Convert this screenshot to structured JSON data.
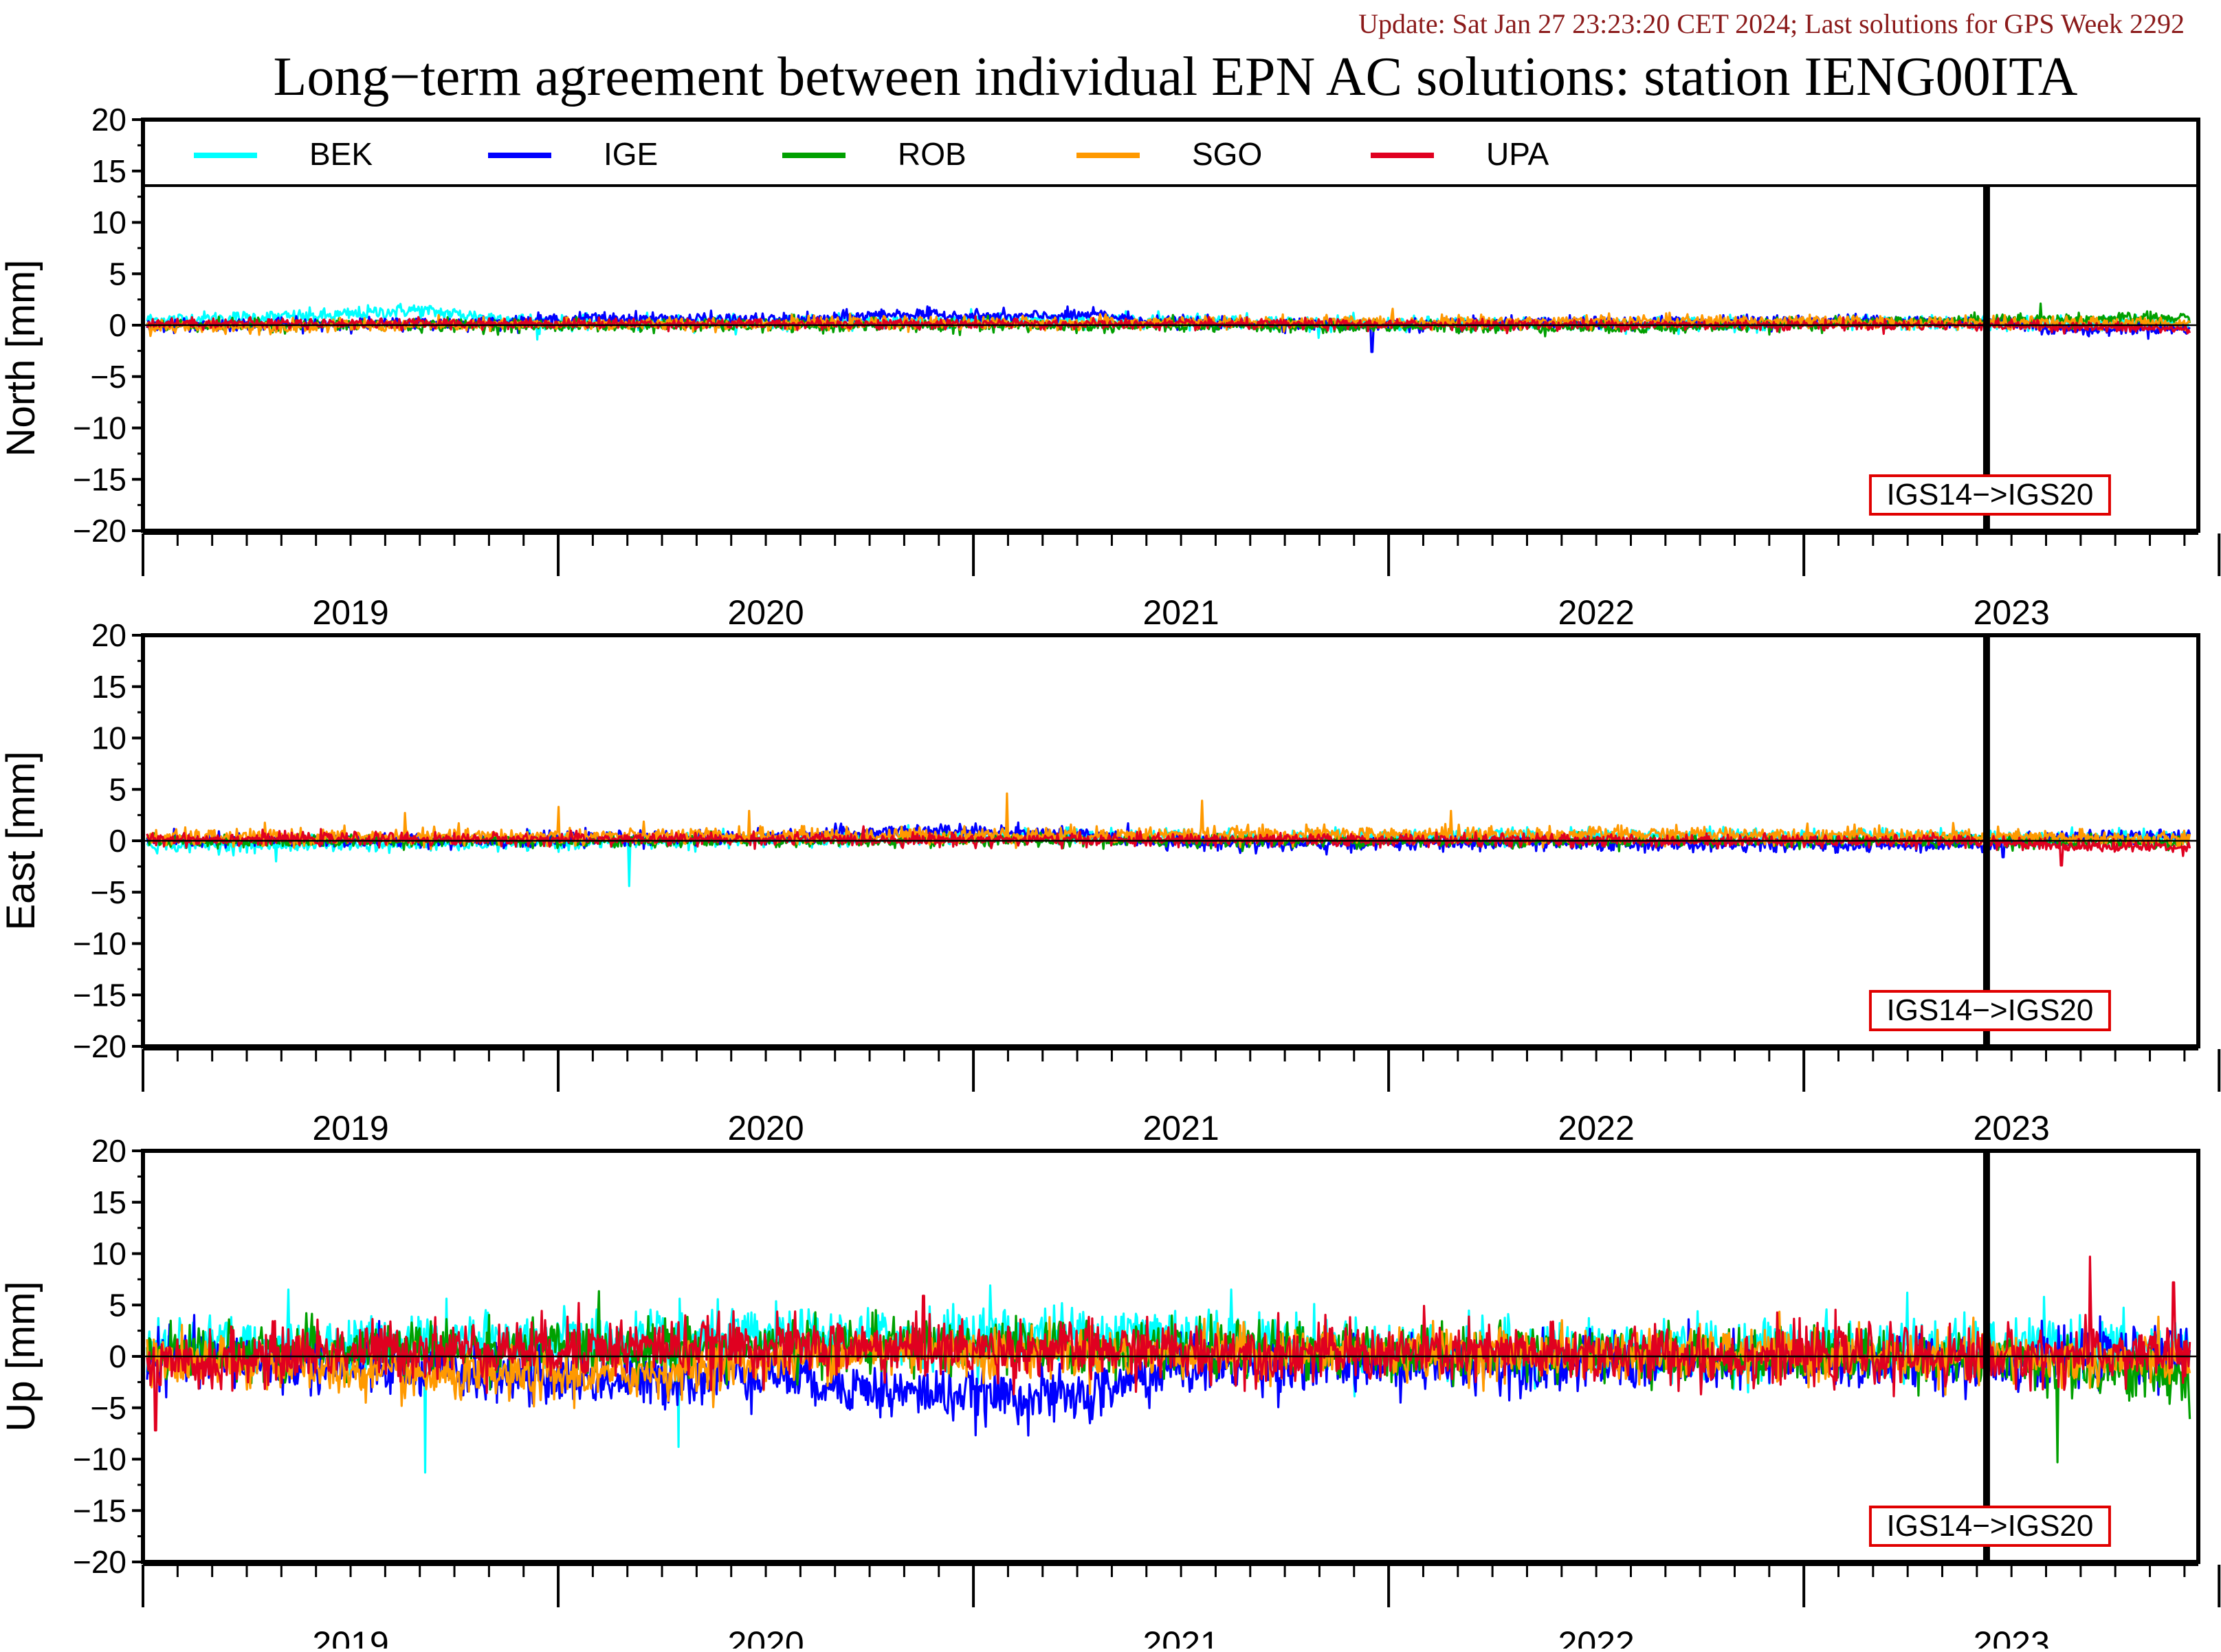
{
  "header": {
    "update_text": "Update: Sat Jan 27 23:23:20 CET 2024; Last solutions for GPS Week 2292",
    "title": "Long−term agreement between individual EPN AC solutions: station IENG00ITA"
  },
  "colors": {
    "update_text": "#8b1a1a",
    "BEK": "#00ffff",
    "IGE": "#0000ff",
    "ROB": "#00a000",
    "SGO": "#ff9900",
    "UPA": "#e00020",
    "annotation_border": "#e00000"
  },
  "chart_data": {
    "type": "line",
    "x_range": [
      2018.5,
      2023.45
    ],
    "x_ticks": [
      "2019",
      "2020",
      "2021",
      "2022",
      "2023"
    ],
    "y_ticks": [
      "20",
      "15",
      "10",
      "5",
      "0",
      "−5",
      "−10",
      "−15",
      "−20"
    ],
    "ylim": [
      -20,
      20
    ],
    "legend_placement": "top",
    "series": [
      {
        "name": "BEK"
      },
      {
        "name": "IGE"
      },
      {
        "name": "ROB"
      },
      {
        "name": "SGO"
      },
      {
        "name": "UPA"
      }
    ],
    "annotation": {
      "text": "IGS14−>IGS20",
      "x": 2022.94
    },
    "panels": [
      {
        "ylabel": "North [mm]",
        "sigma": {
          "BEK": 0.35,
          "IGE": 0.3,
          "ROB": 0.3,
          "SGO": 0.3,
          "UPA": 0.25
        },
        "trend": {
          "BEK": [
            [
              2018.5,
              0.5
            ],
            [
              2018.95,
              0.9
            ],
            [
              2019.15,
              1.5
            ],
            [
              2019.3,
              0.9
            ],
            [
              2019.5,
              0.2
            ],
            [
              2020.9,
              0.5
            ],
            [
              2021.0,
              0.5
            ],
            [
              2021.4,
              0.1
            ],
            [
              2022.6,
              0.2
            ],
            [
              2023.45,
              0.2
            ]
          ],
          "IGE": [
            [
              2018.5,
              0.0
            ],
            [
              2019.3,
              0.2
            ],
            [
              2019.6,
              0.7
            ],
            [
              2020.1,
              0.5
            ],
            [
              2020.3,
              1.1
            ],
            [
              2020.6,
              0.8
            ],
            [
              2020.8,
              1.0
            ],
            [
              2020.95,
              0.3
            ],
            [
              2021.5,
              0.0
            ],
            [
              2022.7,
              0.5
            ],
            [
              2023.0,
              0.2
            ],
            [
              2023.15,
              -0.5
            ],
            [
              2023.3,
              -0.3
            ],
            [
              2023.45,
              -0.3
            ]
          ],
          "ROB": [
            [
              2018.5,
              0.0
            ],
            [
              2021.4,
              -0.1
            ],
            [
              2022.2,
              -0.2
            ],
            [
              2022.95,
              0.5
            ],
            [
              2023.45,
              0.7
            ]
          ],
          "SGO": [
            [
              2018.5,
              -0.2
            ],
            [
              2019.6,
              0.1
            ],
            [
              2022.3,
              0.4
            ],
            [
              2022.95,
              0.2
            ],
            [
              2023.45,
              0.2
            ]
          ],
          "UPA": [
            [
              2018.5,
              0.2
            ],
            [
              2022.95,
              0.0
            ],
            [
              2023.45,
              -0.4
            ]
          ]
        },
        "spikes": [
          {
            "s": "IGE",
            "x": 2021.46,
            "y": -2.6
          },
          {
            "s": "ROB",
            "x": 2023.07,
            "y": 2.1
          },
          {
            "s": "BEK",
            "x": 2019.45,
            "y": -1.4
          }
        ]
      },
      {
        "ylabel": "East [mm]",
        "sigma": {
          "BEK": 0.35,
          "IGE": 0.35,
          "ROB": 0.3,
          "SGO": 0.4,
          "UPA": 0.3
        },
        "trend": {
          "BEK": [
            [
              2018.5,
              -0.4
            ],
            [
              2019.3,
              -0.3
            ],
            [
              2020.8,
              0.5
            ],
            [
              2021.2,
              0.4
            ],
            [
              2022.3,
              0.5
            ],
            [
              2023.45,
              0.3
            ]
          ],
          "IGE": [
            [
              2018.5,
              0.0
            ],
            [
              2019.5,
              0.1
            ],
            [
              2019.9,
              0.3
            ],
            [
              2020.3,
              0.9
            ],
            [
              2020.6,
              0.9
            ],
            [
              2020.95,
              0.0
            ],
            [
              2021.3,
              -0.4
            ],
            [
              2021.5,
              -0.2
            ],
            [
              2022.7,
              -0.4
            ],
            [
              2022.95,
              -0.2
            ],
            [
              2023.2,
              0.5
            ],
            [
              2023.45,
              0.4
            ]
          ],
          "ROB": [
            [
              2018.5,
              0.0
            ],
            [
              2022.8,
              0.0
            ],
            [
              2023.45,
              -0.2
            ]
          ],
          "SGO": [
            [
              2018.5,
              0.3
            ],
            [
              2021.2,
              0.6
            ],
            [
              2022.5,
              0.6
            ],
            [
              2023.45,
              0.1
            ]
          ],
          "UPA": [
            [
              2018.5,
              0.2
            ],
            [
              2022.9,
              0.0
            ],
            [
              2023.15,
              -0.5
            ],
            [
              2023.45,
              -0.6
            ]
          ]
        },
        "spikes": [
          {
            "s": "BEK",
            "x": 2019.67,
            "y": -4.4
          },
          {
            "s": "SGO",
            "x": 2020.58,
            "y": 4.6
          },
          {
            "s": "SGO",
            "x": 2021.05,
            "y": 3.9
          },
          {
            "s": "SGO",
            "x": 2021.65,
            "y": 2.9
          },
          {
            "s": "SGO",
            "x": 2019.13,
            "y": 2.7
          },
          {
            "s": "SGO",
            "x": 2019.5,
            "y": 3.3
          },
          {
            "s": "SGO",
            "x": 2019.96,
            "y": 2.9
          },
          {
            "s": "UPA",
            "x": 2023.12,
            "y": -2.4
          },
          {
            "s": "IGE",
            "x": 2022.98,
            "y": -1.6
          },
          {
            "s": "BEK",
            "x": 2018.82,
            "y": -2.0
          }
        ]
      },
      {
        "ylabel": "Up [mm]",
        "sigma": {
          "BEK": 1.4,
          "IGE": 1.3,
          "ROB": 1.3,
          "SGO": 1.2,
          "UPA": 1.4
        },
        "trend": {
          "BEK": [
            [
              2018.5,
              1.0
            ],
            [
              2019.5,
              1.5
            ],
            [
              2020.3,
              1.8
            ],
            [
              2021.0,
              2.5
            ],
            [
              2021.2,
              1.5
            ],
            [
              2021.5,
              0.6
            ],
            [
              2022.9,
              0.8
            ],
            [
              2023.45,
              0.8
            ]
          ],
          "IGE": [
            [
              2018.5,
              0.0
            ],
            [
              2019.2,
              -1.5
            ],
            [
              2019.7,
              -2.5
            ],
            [
              2020.0,
              -1.5
            ],
            [
              2020.3,
              -3.5
            ],
            [
              2020.75,
              -4.0
            ],
            [
              2021.0,
              -1.0
            ],
            [
              2021.4,
              -0.8
            ],
            [
              2022.9,
              -0.6
            ],
            [
              2023.45,
              0.0
            ]
          ],
          "ROB": [
            [
              2018.5,
              0.5
            ],
            [
              2020.5,
              1.0
            ],
            [
              2021.5,
              0.5
            ],
            [
              2022.8,
              0.0
            ],
            [
              2023.45,
              -2.0
            ]
          ],
          "SGO": [
            [
              2018.5,
              -0.5
            ],
            [
              2018.85,
              -0.8
            ],
            [
              2019.1,
              -2.0
            ],
            [
              2019.5,
              -2.0
            ],
            [
              2019.75,
              -1.5
            ],
            [
              2020.2,
              0.5
            ],
            [
              2022.2,
              0.2
            ],
            [
              2023.45,
              -0.5
            ]
          ],
          "UPA": [
            [
              2018.5,
              -1.5
            ],
            [
              2018.9,
              0.5
            ],
            [
              2019.8,
              1.0
            ],
            [
              2021.5,
              0.3
            ],
            [
              2022.9,
              0.0
            ],
            [
              2023.45,
              0.3
            ]
          ]
        },
        "spikes": [
          {
            "s": "BEK",
            "x": 2019.18,
            "y": -11.3
          },
          {
            "s": "BEK",
            "x": 2019.79,
            "y": -8.8
          },
          {
            "s": "BEK",
            "x": 2018.85,
            "y": 6.5
          },
          {
            "s": "BEK",
            "x": 2020.54,
            "y": 6.9
          },
          {
            "s": "UPA",
            "x": 2023.19,
            "y": 9.7
          },
          {
            "s": "UPA",
            "x": 2023.39,
            "y": 7.2
          },
          {
            "s": "UPA",
            "x": 2018.53,
            "y": -7.2
          },
          {
            "s": "UPA",
            "x": 2019.55,
            "y": 5.2
          },
          {
            "s": "UPA",
            "x": 2020.38,
            "y": 5.9
          },
          {
            "s": "ROB",
            "x": 2023.11,
            "y": -10.3
          },
          {
            "s": "ROB",
            "x": 2023.43,
            "y": -6.1
          },
          {
            "s": "IGE",
            "x": 2020.78,
            "y": -6.5
          },
          {
            "s": "BEK",
            "x": 2022.75,
            "y": 6.2
          },
          {
            "s": "BEK",
            "x": 2021.12,
            "y": 6.5
          }
        ]
      }
    ]
  }
}
